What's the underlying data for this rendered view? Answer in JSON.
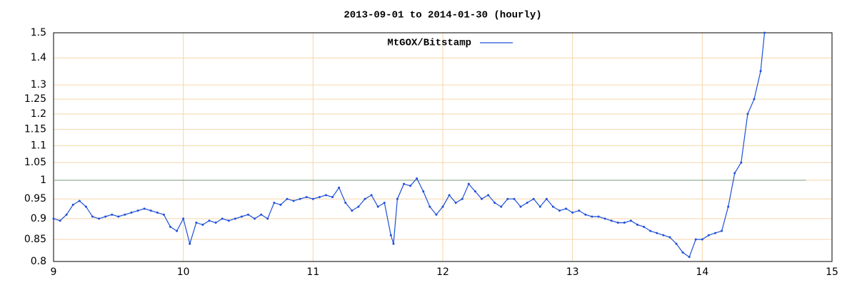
{
  "chart_data": {
    "type": "line",
    "title": "2013-09-01 to 2014-01-30 (hourly)",
    "x": [
      9.0,
      9.05,
      9.1,
      9.15,
      9.2,
      9.25,
      9.3,
      9.35,
      9.4,
      9.45,
      9.5,
      9.55,
      9.6,
      9.65,
      9.7,
      9.75,
      9.8,
      9.85,
      9.9,
      9.95,
      10.0,
      10.05,
      10.1,
      10.15,
      10.2,
      10.25,
      10.3,
      10.35,
      10.4,
      10.45,
      10.5,
      10.55,
      10.6,
      10.65,
      10.7,
      10.75,
      10.8,
      10.85,
      10.9,
      10.95,
      11.0,
      11.05,
      11.1,
      11.15,
      11.2,
      11.25,
      11.3,
      11.35,
      11.4,
      11.45,
      11.5,
      11.55,
      11.6,
      11.62,
      11.65,
      11.7,
      11.75,
      11.8,
      11.85,
      11.9,
      11.95,
      12.0,
      12.05,
      12.1,
      12.15,
      12.2,
      12.25,
      12.3,
      12.35,
      12.4,
      12.45,
      12.5,
      12.55,
      12.6,
      12.65,
      12.7,
      12.75,
      12.8,
      12.85,
      12.9,
      12.95,
      13.0,
      13.05,
      13.1,
      13.15,
      13.2,
      13.25,
      13.3,
      13.35,
      13.4,
      13.45,
      13.5,
      13.55,
      13.6,
      13.65,
      13.7,
      13.75,
      13.8,
      13.85,
      13.9,
      13.95,
      14.0,
      14.05,
      14.1,
      14.15,
      14.2,
      14.25,
      14.3,
      14.35,
      14.4,
      14.45,
      14.48
    ],
    "series": [
      {
        "name": "MtGOX/Bitstamp",
        "color": "#1f4fd8",
        "values": [
          0.9,
          0.895,
          0.91,
          0.935,
          0.945,
          0.93,
          0.905,
          0.9,
          0.905,
          0.91,
          0.905,
          0.91,
          0.915,
          0.92,
          0.925,
          0.92,
          0.915,
          0.91,
          0.88,
          0.87,
          0.9,
          0.84,
          0.89,
          0.885,
          0.895,
          0.89,
          0.9,
          0.895,
          0.9,
          0.905,
          0.91,
          0.9,
          0.91,
          0.9,
          0.94,
          0.935,
          0.95,
          0.945,
          0.95,
          0.955,
          0.95,
          0.955,
          0.96,
          0.955,
          0.98,
          0.94,
          0.92,
          0.93,
          0.95,
          0.96,
          0.93,
          0.94,
          0.86,
          0.84,
          0.95,
          0.99,
          0.985,
          1.005,
          0.97,
          0.93,
          0.91,
          0.93,
          0.96,
          0.94,
          0.95,
          0.99,
          0.97,
          0.95,
          0.96,
          0.94,
          0.93,
          0.95,
          0.95,
          0.93,
          0.94,
          0.95,
          0.93,
          0.95,
          0.93,
          0.92,
          0.925,
          0.915,
          0.92,
          0.91,
          0.905,
          0.905,
          0.9,
          0.895,
          0.89,
          0.89,
          0.895,
          0.885,
          0.88,
          0.87,
          0.865,
          0.86,
          0.855,
          0.84,
          0.82,
          0.81,
          0.85,
          0.85,
          0.86,
          0.865,
          0.87,
          0.93,
          1.02,
          1.05,
          1.2,
          1.25,
          1.35,
          1.5
        ]
      }
    ],
    "xlim": [
      9,
      15
    ],
    "xticks": [
      9,
      10,
      11,
      12,
      13,
      14,
      15
    ],
    "ylim": [
      0.8,
      1.5
    ],
    "yticks": [
      0.8,
      0.85,
      0.9,
      0.95,
      1,
      1.05,
      1.1,
      1.15,
      1.2,
      1.25,
      1.3,
      1.4,
      1.5
    ],
    "log_y": true,
    "grid": true,
    "reference_line": 1,
    "legend": "top"
  }
}
